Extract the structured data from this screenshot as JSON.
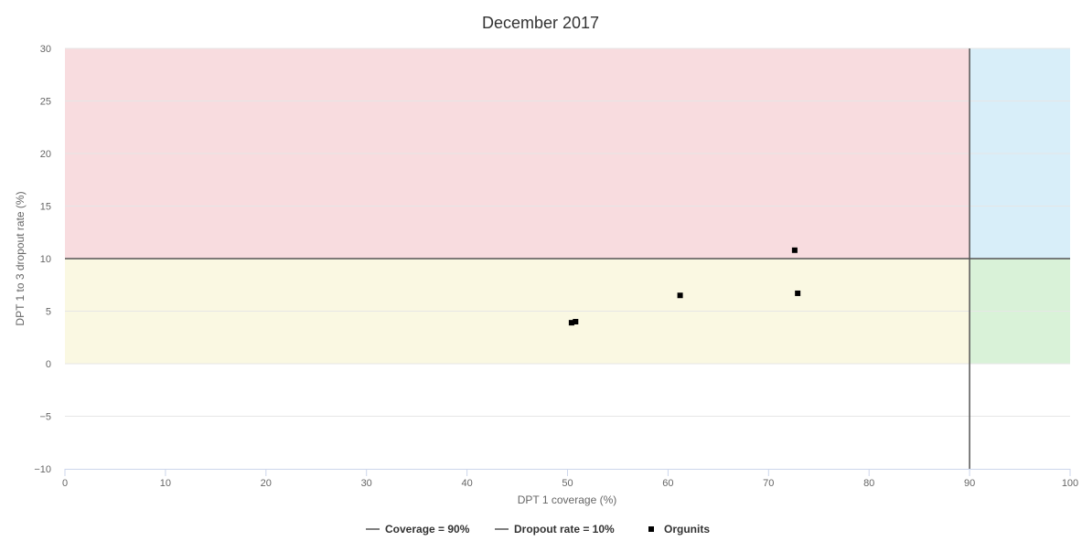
{
  "chart_data": {
    "type": "scatter",
    "title": "December 2017",
    "xlabel": "DPT 1 coverage (%)",
    "ylabel": "DPT 1 to 3 dropout rate (%)",
    "xlim": [
      0,
      100
    ],
    "ylim": [
      -10,
      30
    ],
    "x_ticks": [
      "0",
      "10",
      "20",
      "30",
      "40",
      "50",
      "60",
      "70",
      "80",
      "90",
      "100"
    ],
    "y_ticks": [
      "30",
      "25",
      "20",
      "15",
      "10",
      "5",
      "0",
      "−5",
      "−10"
    ],
    "grid": true,
    "zones": [
      {
        "x": [
          0,
          90
        ],
        "y": [
          10,
          30
        ],
        "color": "#f8dcdf"
      },
      {
        "x": [
          90,
          100
        ],
        "y": [
          10,
          30
        ],
        "color": "#d8eef9"
      },
      {
        "x": [
          0,
          90
        ],
        "y": [
          0,
          10
        ],
        "color": "#faf8e2"
      },
      {
        "x": [
          90,
          100
        ],
        "y": [
          0,
          10
        ],
        "color": "#d9f2d8"
      }
    ],
    "reference_lines": [
      {
        "name": "Coverage = 90%",
        "axis": "x",
        "value": 90,
        "color": "#555555"
      },
      {
        "name": "Dropout rate = 10%",
        "axis": "y",
        "value": 10,
        "color": "#555555"
      }
    ],
    "series": [
      {
        "name": "Orgunits",
        "marker": "square",
        "color": "#000000",
        "points": [
          {
            "x": 50.4,
            "y": 3.9
          },
          {
            "x": 50.8,
            "y": 4.0
          },
          {
            "x": 61.2,
            "y": 6.5
          },
          {
            "x": 72.6,
            "y": 10.8
          },
          {
            "x": 72.9,
            "y": 6.7
          }
        ]
      }
    ],
    "legend_position": "bottom-center"
  }
}
